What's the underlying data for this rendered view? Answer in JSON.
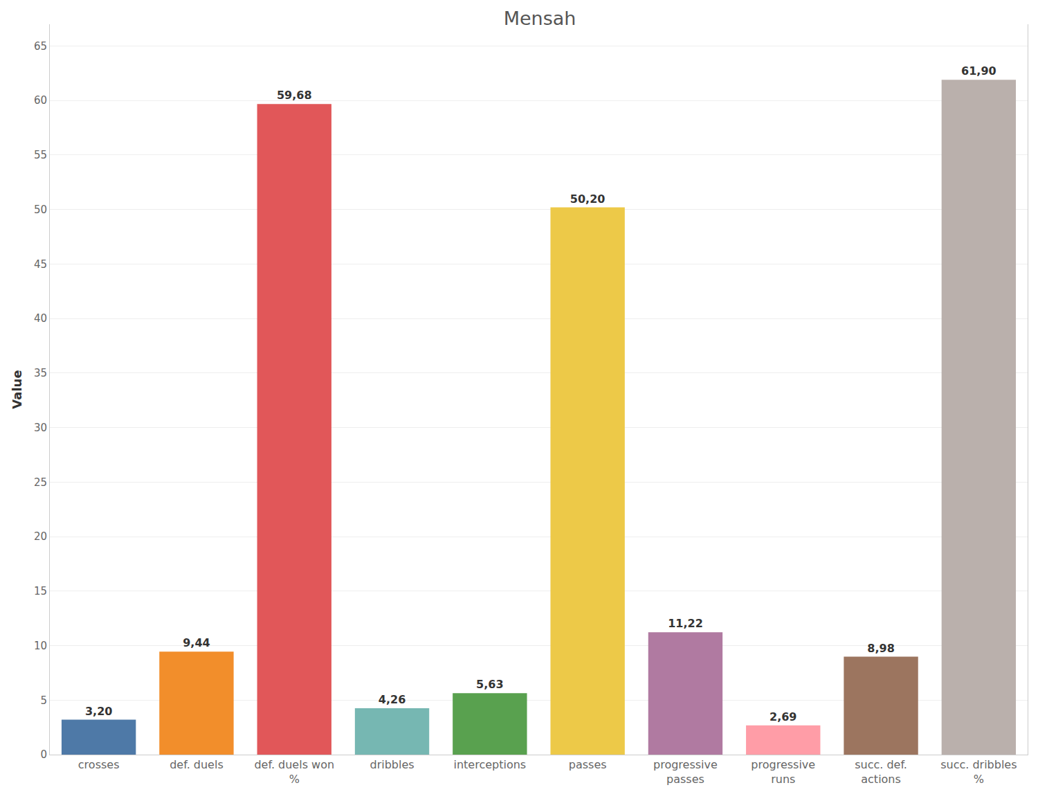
{
  "chart_data": {
    "type": "bar",
    "title": "Mensah",
    "y_label": "Value",
    "categories": [
      "crosses",
      "def. duels",
      "def. duels won %",
      "dribbles",
      "interceptions",
      "passes",
      "progressive passes",
      "progressive runs",
      "succ. def. actions",
      "succ. dribbles %"
    ],
    "values": [
      3.2,
      9.44,
      59.68,
      4.26,
      5.63,
      50.2,
      11.22,
      2.69,
      8.98,
      61.9
    ],
    "value_labels": [
      "3,20",
      "9,44",
      "59,68",
      "4,26",
      "5,63",
      "50,20",
      "11,22",
      "2,69",
      "8,98",
      "61,90"
    ],
    "colors": [
      "#4e79a7",
      "#f28e2b",
      "#e15759",
      "#76b7b2",
      "#59a14f",
      "#edc948",
      "#b07aa1",
      "#ff9da7",
      "#9c755f",
      "#bab0ac"
    ],
    "ylim": [
      0,
      67
    ],
    "yticks": [
      0,
      5,
      10,
      15,
      20,
      25,
      30,
      35,
      40,
      45,
      50,
      55,
      60,
      65
    ],
    "grid": true,
    "data_labels": true
  }
}
